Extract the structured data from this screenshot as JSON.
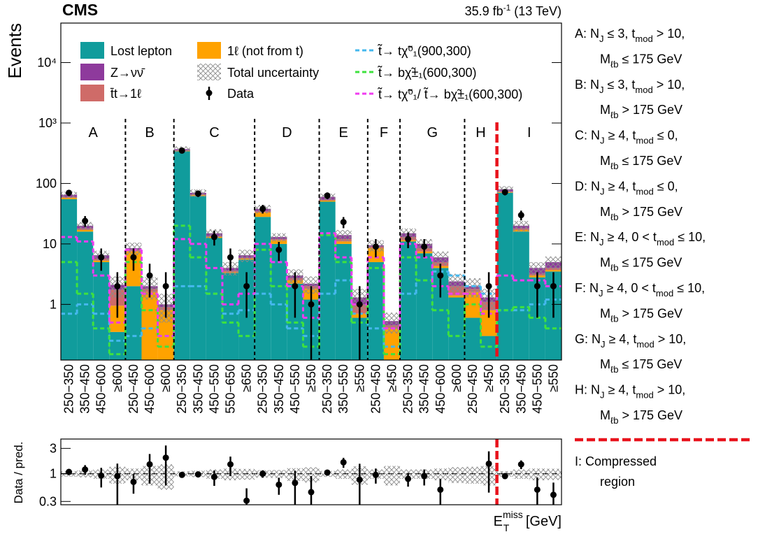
{
  "chart_data": {
    "type": "stacked-bar-log",
    "title": "CMS",
    "luminosity": {
      "pre": "35.9 fb",
      "sup": "-1",
      "post": " (13 TeV)"
    },
    "ylabel": "Events",
    "xlabel": {
      "base": "E",
      "sub": "T",
      "sup": "miss",
      "rest": " [GeV]"
    },
    "categories": [
      "250−350",
      "350−450",
      "450−600",
      "≥600",
      "250−450",
      "450−600",
      "≥600",
      "250−350",
      "350−450",
      "450−550",
      "550−650",
      "≥650",
      "250−350",
      "350−450",
      "450−550",
      "≥550",
      "250−350",
      "350−550",
      "≥550",
      "250−450",
      "≥450",
      "250−350",
      "350−450",
      "450−600",
      "≥600",
      "250−450",
      "≥450",
      "250−350",
      "350−450",
      "450−550",
      "≥550"
    ],
    "regions": [
      {
        "letter": "A",
        "bins": 4,
        "description": [
          [
            "A: N",
            "J",
            " ≤ 3, t",
            "mod",
            " > 10,"
          ],
          [
            "M",
            "ℓb",
            " ≤ 175 GeV"
          ]
        ]
      },
      {
        "letter": "B",
        "bins": 3,
        "description": [
          [
            "B: N",
            "J",
            " ≤ 3, t",
            "mod",
            " > 10,"
          ],
          [
            "M",
            "ℓb",
            " > 175 GeV"
          ]
        ]
      },
      {
        "letter": "C",
        "bins": 5,
        "description": [
          [
            "C: N",
            "J",
            " ≥ 4, t",
            "mod",
            " ≤ 0,"
          ],
          [
            "M",
            "ℓb",
            " ≤ 175 GeV"
          ]
        ]
      },
      {
        "letter": "D",
        "bins": 4,
        "description": [
          [
            "D: N",
            "J",
            " ≥ 4, t",
            "mod",
            " ≤ 0,"
          ],
          [
            "M",
            "ℓb",
            " > 175 GeV"
          ]
        ]
      },
      {
        "letter": "E",
        "bins": 3,
        "description": [
          [
            "E: N",
            "J",
            " ≥ 4, 0 < t",
            "mod",
            " ≤ 10,"
          ],
          [
            "M",
            "ℓb",
            " ≤ 175 GeV"
          ]
        ]
      },
      {
        "letter": "F",
        "bins": 2,
        "description": [
          [
            "F: N",
            "J",
            " ≥ 4, 0 < t",
            "mod",
            " ≤ 10,"
          ],
          [
            "M",
            "ℓb",
            " > 175 GeV"
          ]
        ]
      },
      {
        "letter": "G",
        "bins": 4,
        "description": [
          [
            "G: N",
            "J",
            " ≥ 4, t",
            "mod",
            " > 10,"
          ],
          [
            "M",
            "ℓb",
            " ≤ 175 GeV"
          ]
        ]
      },
      {
        "letter": "H",
        "bins": 2,
        "description": [
          [
            "H: N",
            "J",
            " ≥ 4, t",
            "mod",
            " > 10,"
          ],
          [
            "M",
            "ℓb",
            " > 175 GeV"
          ]
        ]
      },
      {
        "letter": "I",
        "bins": 4,
        "separator_color": "#e8121c",
        "description": [
          [
            "I: Compressed"
          ],
          [
            "region"
          ]
        ]
      }
    ],
    "series": [
      {
        "name": "Lost lepton",
        "color": "#109c9c",
        "values": [
          55,
          16,
          5,
          0.35,
          2,
          0.1,
          0.1,
          340,
          62,
          12.5,
          3.3,
          5.5,
          28,
          10,
          2.2,
          1.2,
          50,
          10,
          0.6,
          5,
          0.1,
          11,
          7,
          4,
          1.3,
          0.6,
          0.3,
          70,
          16,
          2.8,
          3.5
        ]
      },
      {
        "name": "1ℓ (not from t)",
        "color": "#ffa200",
        "values": [
          3,
          1,
          0.3,
          0.6,
          5.5,
          1.5,
          0.7,
          5,
          2,
          0.5,
          0.1,
          0.2,
          5,
          1.5,
          0.3,
          0.6,
          2,
          1,
          0.1,
          3.5,
          0.3,
          0.5,
          0.5,
          0.3,
          0.1,
          1.0,
          0.5,
          2,
          1,
          0.2,
          0.2
        ]
      },
      {
        "name": "t̄t→1ℓ",
        "color": "#cf6b68",
        "values": [
          2,
          1,
          0.4,
          0.8,
          0.5,
          0.2,
          0.1,
          10,
          2,
          0.5,
          0.2,
          0.2,
          2,
          0.5,
          0.2,
          0.2,
          2,
          1,
          0.3,
          0.5,
          0.05,
          1.5,
          1,
          0.7,
          0.6,
          0.2,
          0.3,
          2,
          1,
          0.2,
          0.3
        ]
      },
      {
        "name": "Z→νν̄",
        "color": "#8e3a9c",
        "values": [
          5,
          2,
          0.8,
          0.35,
          0.5,
          0.2,
          0.1,
          15,
          4,
          1.5,
          0.4,
          0.6,
          3,
          1,
          0.3,
          0.2,
          6,
          2,
          0.3,
          0.5,
          0.08,
          2,
          1.5,
          1,
          0.4,
          0.2,
          0.2,
          6,
          2,
          0.8,
          1
        ]
      }
    ],
    "uncertainty": {
      "name": "Total uncertainty",
      "color": "#8a8a8a",
      "values": [
        8,
        3,
        1.2,
        0.8,
        2,
        0.8,
        0.5,
        40,
        10,
        2.5,
        1,
        1.5,
        6,
        2,
        0.8,
        0.7,
        8,
        3,
        0.5,
        2,
        0.2,
        3,
        2,
        1.5,
        0.8,
        0.7,
        0.5,
        10,
        4,
        1,
        1.2
      ]
    },
    "data": {
      "name": "Data",
      "color": "#000000",
      "values": [
        70,
        24,
        6,
        2,
        6,
        3,
        2,
        350,
        68,
        13,
        6,
        2,
        38,
        8,
        2,
        1,
        63,
        23,
        1,
        9,
        null,
        12,
        9,
        3,
        null,
        null,
        2,
        72,
        30,
        2,
        2
      ],
      "errors": [
        8.4,
        4.9,
        2.4,
        1.4,
        2.4,
        1.7,
        1.4,
        18.7,
        8.2,
        3.6,
        2.4,
        1.4,
        6.2,
        2.8,
        1.4,
        1,
        7.9,
        4.8,
        1,
        3,
        null,
        3.5,
        3,
        1.7,
        null,
        null,
        1.4,
        8.5,
        5.5,
        1.4,
        1.4
      ]
    },
    "signals": [
      {
        "name": "t̃→ tχ̃⁰₁(900,300)",
        "color": "#45b8ee",
        "values": [
          0.7,
          1.0,
          0.7,
          0.25,
          0.3,
          0.4,
          0.3,
          2.0,
          2.0,
          1.5,
          0.7,
          0.8,
          1.5,
          1.0,
          0.4,
          0.3,
          1.5,
          2.5,
          0.7,
          0.4,
          0.2,
          1.5,
          2.5,
          3.5,
          3.0,
          2.0,
          1.5,
          0.8,
          0.8,
          1.0,
          1.2
        ]
      },
      {
        "name": "t̃→ bχ̃±₁(600,300)",
        "color": "#3ee23e",
        "values": [
          5,
          1.5,
          0.4,
          0.15,
          5,
          0.8,
          0.2,
          20,
          6,
          1.5,
          0.5,
          0.3,
          8,
          2,
          0.5,
          0.2,
          14,
          5,
          0.5,
          4,
          0.15,
          6,
          2.5,
          0.8,
          0.3,
          1.0,
          0.2,
          0.8,
          0.9,
          0.6,
          0.4
        ]
      },
      {
        "name": "t̃→ tχ̃⁰₁/ t̃→ bχ̃±₁(600,300)",
        "color": "#f03cf0",
        "values": [
          13,
          11,
          3,
          0.5,
          8,
          1.5,
          0.3,
          12,
          10,
          4,
          1,
          1.5,
          10,
          5,
          2,
          0.6,
          15,
          6,
          1,
          6,
          0.4,
          10,
          6,
          2,
          1.5,
          1.5,
          0.7,
          3,
          2.5,
          2.5,
          2
        ]
      }
    ],
    "ylim": [
      0.12,
      45000
    ],
    "yticks": [
      1,
      10,
      100,
      {
        "value": 1000,
        "label": "10³"
      },
      {
        "value": 10000,
        "label": "10⁴"
      }
    ],
    "log_scale": true,
    "grid": false,
    "ratio": {
      "ylabel": "Data / pred.",
      "values": [
        1.08,
        1.2,
        0.92,
        0.9,
        0.7,
        1.5,
        2.0,
        0.95,
        0.97,
        0.87,
        1.5,
        0.31,
        1.0,
        0.62,
        0.67,
        0.45,
        1.05,
        1.64,
        0.77,
        0.95,
        null,
        0.8,
        0.9,
        0.5,
        null,
        null,
        1.54,
        0.9,
        1.5,
        0.5,
        0.4
      ],
      "errors": [
        0.12,
        0.25,
        0.37,
        0.65,
        0.28,
        0.85,
        1.4,
        0.05,
        0.12,
        0.28,
        0.6,
        0.22,
        0.16,
        0.22,
        0.47,
        0.45,
        0.13,
        0.35,
        0.77,
        0.3,
        null,
        0.23,
        0.3,
        0.3,
        null,
        null,
        1.1,
        0.1,
        0.28,
        0.35,
        0.28
      ],
      "uncertainty": [
        0.12,
        0.15,
        0.2,
        0.35,
        0.25,
        0.4,
        0.5,
        0.11,
        0.14,
        0.2,
        0.25,
        0.23,
        0.16,
        0.17,
        0.27,
        0.32,
        0.13,
        0.2,
        0.38,
        0.2,
        0.4,
        0.2,
        0.2,
        0.25,
        0.33,
        0.35,
        0.4,
        0.12,
        0.2,
        0.25,
        0.24
      ],
      "ylim": [
        0.26,
        4.5
      ],
      "yticks": [
        0.3,
        1,
        3
      ]
    }
  }
}
